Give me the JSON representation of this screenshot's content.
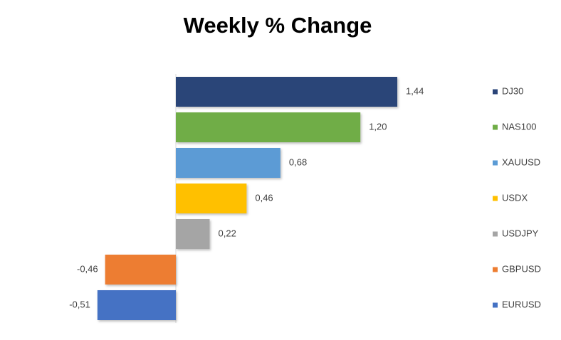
{
  "chart_data": {
    "type": "hbar",
    "title": "Weekly % Change",
    "categories": [
      "DJ30",
      "NAS100",
      "XAUUSD",
      "USDX",
      "USDJPY",
      "GBPUSD",
      "EURUSD"
    ],
    "values": [
      1.44,
      1.2,
      0.68,
      0.46,
      0.22,
      -0.46,
      -0.51
    ],
    "value_labels": [
      "1,44",
      "1,20",
      "0,68",
      "0,46",
      "0,22",
      "-0,46",
      "-0,51"
    ],
    "colors": [
      "#2a4478",
      "#70ad47",
      "#5b9bd5",
      "#ffc000",
      "#a5a5a5",
      "#ed7d31",
      "#4472c4"
    ],
    "xlim": [
      -0.6,
      1.6
    ],
    "legend": "right"
  }
}
